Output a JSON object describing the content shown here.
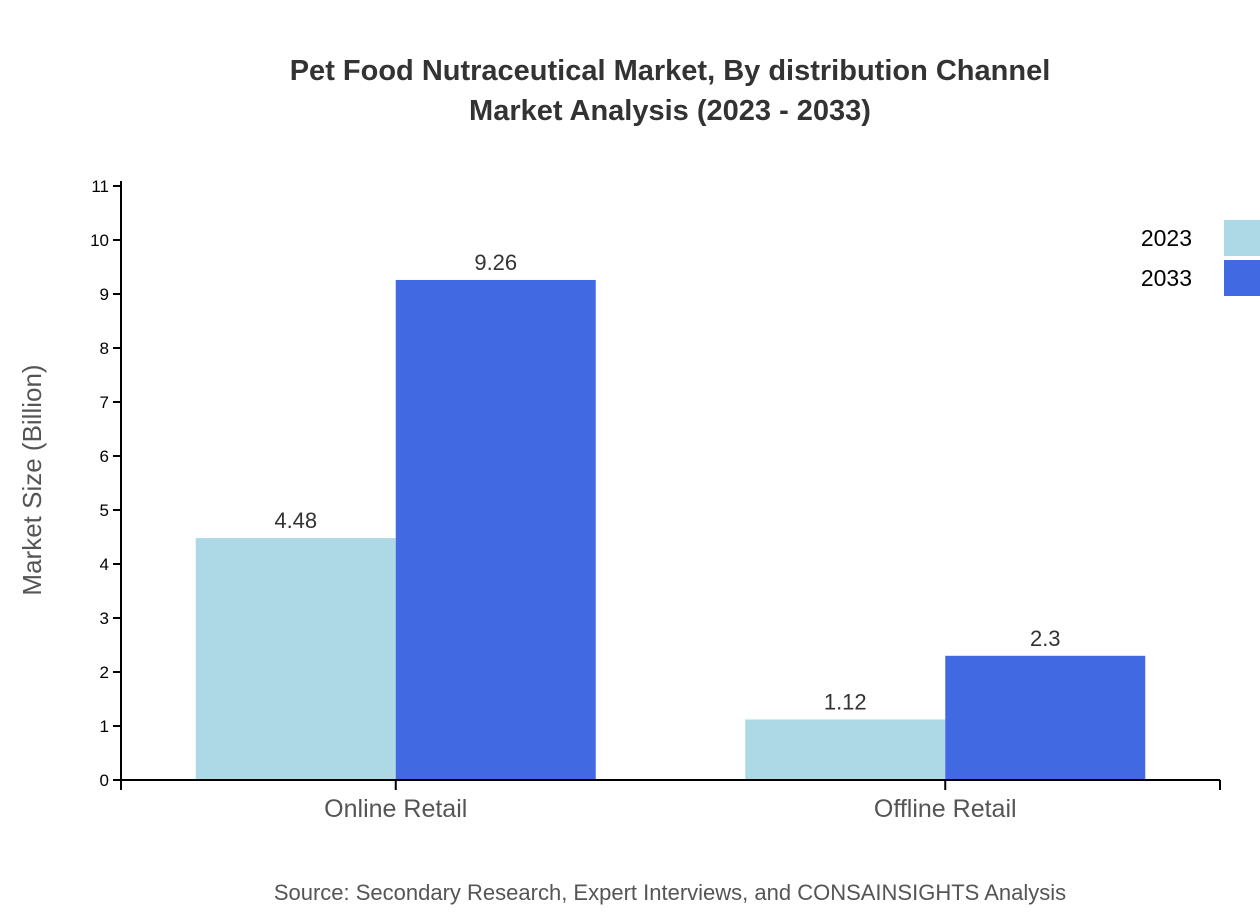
{
  "chart_data": {
    "type": "bar",
    "title_lines": [
      "Pet Food Nutraceutical Market, By distribution Channel",
      "Market Analysis (2023 - 2033)"
    ],
    "xlabel": "",
    "ylabel": "Market Size (Billion)",
    "ylim": [
      0,
      11
    ],
    "yticks": [
      0,
      1,
      2,
      3,
      4,
      5,
      6,
      7,
      8,
      9,
      10,
      11
    ],
    "categories": [
      "Online Retail",
      "Offline Retail"
    ],
    "series": [
      {
        "name": "2023",
        "values": [
          4.48,
          1.12
        ],
        "color": "#ADD8E6"
      },
      {
        "name": "2033",
        "values": [
          9.26,
          2.3
        ],
        "color": "#4169E1"
      }
    ],
    "legend_position": "top-right",
    "grid": false,
    "source": "Source: Secondary Research, Expert Interviews, and CONSAINSIGHTS Analysis"
  }
}
